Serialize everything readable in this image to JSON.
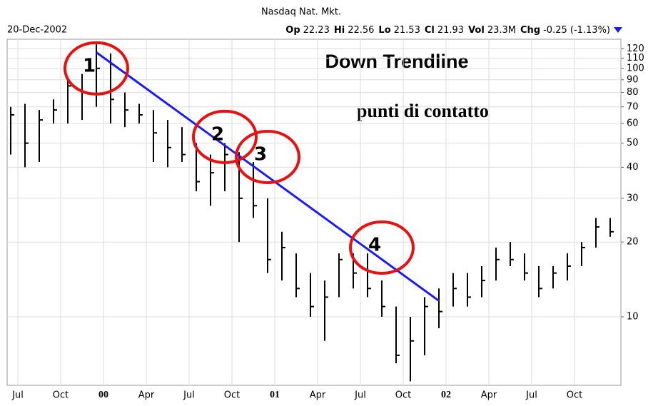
{
  "chart_data": {
    "type": "ohlc",
    "title": "Nasdaq Nat. Mkt.",
    "date": "20-Dec-2002",
    "quote": [
      {
        "label": "Op",
        "value": "22.23"
      },
      {
        "label": "Hi",
        "value": "22.56"
      },
      {
        "label": "Lo",
        "value": "21.53"
      },
      {
        "label": "Cl",
        "value": "21.93"
      },
      {
        "label": "Vol",
        "value": "23.3M"
      },
      {
        "label": "Chg",
        "value": "-0.25 (-1.13%)"
      }
    ],
    "categories": [
      "1999-06",
      "1999-07",
      "1999-08",
      "1999-09",
      "1999-10",
      "1999-11",
      "1999-12",
      "2000-01",
      "2000-02",
      "2000-03",
      "2000-04",
      "2000-05",
      "2000-06",
      "2000-07",
      "2000-08",
      "2000-09",
      "2000-10",
      "2000-11",
      "2000-12",
      "2001-01",
      "2001-02",
      "2001-03",
      "2001-04",
      "2001-05",
      "2001-06",
      "2001-07",
      "2001-08",
      "2001-09",
      "2001-10",
      "2001-11",
      "2001-12",
      "2002-01",
      "2002-02",
      "2002-03",
      "2002-04",
      "2002-05",
      "2002-06",
      "2002-07",
      "2002-08",
      "2002-09",
      "2002-10",
      "2002-11",
      "2002-12"
    ],
    "series": [
      {
        "name": "High",
        "values": [
          70,
          72,
          68,
          75,
          90,
          95,
          125,
          115,
          80,
          72,
          68,
          62,
          58,
          50,
          45,
          50,
          46,
          42,
          30,
          22,
          18,
          15,
          14,
          18,
          18,
          18,
          14,
          11,
          10,
          12,
          13,
          15,
          15,
          16,
          19,
          20,
          18,
          16,
          16,
          18,
          20,
          25,
          25
        ]
      },
      {
        "name": "Low",
        "values": [
          45,
          40,
          42,
          60,
          60,
          62,
          70,
          60,
          58,
          60,
          42,
          40,
          42,
          32,
          28,
          32,
          20,
          25,
          15,
          14,
          12,
          10,
          8,
          12,
          13,
          12,
          10,
          6.5,
          5.5,
          7,
          9,
          11,
          11,
          12,
          14,
          16,
          14,
          12,
          13,
          14,
          16,
          19,
          21
        ]
      },
      {
        "name": "Close",
        "values": [
          65,
          50,
          62,
          68,
          85,
          80,
          100,
          75,
          68,
          65,
          55,
          48,
          45,
          35,
          38,
          45,
          30,
          28,
          17,
          19,
          13,
          11,
          12,
          17,
          15,
          13,
          11,
          7,
          8,
          11,
          10.5,
          13,
          12,
          14,
          17,
          17,
          15,
          13,
          15,
          16,
          19,
          23,
          22
        ]
      }
    ],
    "color": "#000000",
    "log": true,
    "ylim": [
      5.3,
      131
    ],
    "yticks": [
      10,
      20,
      30,
      40,
      50,
      60,
      70,
      80,
      90,
      100,
      110,
      120
    ],
    "xticks": [
      {
        "value": "1999-07",
        "label": "Jul"
      },
      {
        "value": "1999-10",
        "label": "Oct"
      },
      {
        "value": "2000-01",
        "label": "00"
      },
      {
        "value": "2000-04",
        "label": "Apr"
      },
      {
        "value": "2000-07",
        "label": "Jul"
      },
      {
        "value": "2000-10",
        "label": "Oct"
      },
      {
        "value": "2001-01",
        "label": "01"
      },
      {
        "value": "2001-04",
        "label": "Apr"
      },
      {
        "value": "2001-07",
        "label": "Jul"
      },
      {
        "value": "2001-10",
        "label": "Oct"
      },
      {
        "value": "2002-01",
        "label": "02"
      },
      {
        "value": "2002-04",
        "label": "Apr"
      },
      {
        "value": "2002-07",
        "label": "Jul"
      },
      {
        "value": "2002-10",
        "label": "Oct"
      }
    ],
    "grid": true,
    "annotations": {
      "heading": "Down Trendline",
      "subheading": "punti di contatto",
      "trendline": {
        "color": "#1a1aff",
        "x": [
          "1999-12",
          "2001-12"
        ],
        "y": [
          116,
          11.6
        ]
      },
      "points": [
        {
          "label": "1",
          "x": "1999-12",
          "y": 100
        },
        {
          "label": "2",
          "x": "2000-09",
          "y": 53
        },
        {
          "label": "3",
          "x": "2000-12",
          "y": 44
        },
        {
          "label": "4",
          "x": "2001-08",
          "y": 19
        }
      ],
      "circle_color": "#e81010"
    }
  }
}
